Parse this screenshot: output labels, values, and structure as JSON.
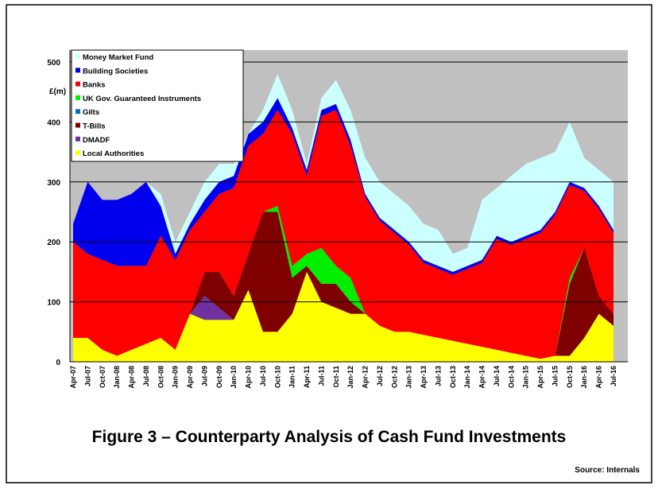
{
  "chart_data": {
    "type": "stacked-area",
    "title": "Figure 3 – Counterparty Analysis of Cash Fund Investments",
    "source": "Source: Internals",
    "y_label": "£(m)",
    "categories": [
      "Apr-07",
      "Jul-07",
      "Oct-07",
      "Jan-08",
      "Apr-08",
      "Jul-08",
      "Oct-08",
      "Jan-09",
      "Apr-09",
      "Jul-09",
      "Oct-09",
      "Jan-10",
      "Apr-10",
      "Jul-10",
      "Oct-10",
      "Jan-11",
      "Apr-11",
      "Jul-11",
      "Oct-11",
      "Jan-12",
      "Apr-12",
      "Jul-12",
      "Oct-12",
      "Jan-13",
      "Apr-13",
      "Jul-13",
      "Oct-13",
      "Jan-14",
      "Apr-14",
      "Jul-14",
      "Oct-14",
      "Jan-15",
      "Apr-15",
      "Jul-15",
      "Oct-15",
      "Jan-16",
      "Apr-16",
      "Jul-16"
    ],
    "series": [
      {
        "name": "Local Authorities",
        "color": "#ffff00",
        "values": [
          40,
          40,
          20,
          10,
          20,
          30,
          40,
          20,
          80,
          70,
          70,
          70,
          120,
          50,
          50,
          80,
          150,
          100,
          90,
          80,
          80,
          60,
          50,
          50,
          45,
          40,
          35,
          30,
          25,
          20,
          15,
          10,
          5,
          10,
          10,
          40,
          80,
          60
        ]
      },
      {
        "name": "DMADF",
        "color": "#7030a0",
        "values": [
          0,
          0,
          0,
          0,
          0,
          0,
          0,
          0,
          0,
          40,
          20,
          0,
          0,
          0,
          0,
          0,
          0,
          0,
          0,
          0,
          0,
          0,
          0,
          0,
          0,
          0,
          0,
          0,
          0,
          0,
          0,
          0,
          0,
          0,
          0,
          0,
          0,
          0
        ]
      },
      {
        "name": "T-Bills",
        "color": "#800000",
        "values": [
          0,
          0,
          0,
          0,
          0,
          0,
          0,
          0,
          0,
          40,
          60,
          40,
          60,
          200,
          200,
          60,
          10,
          30,
          40,
          20,
          0,
          0,
          0,
          0,
          0,
          0,
          0,
          0,
          0,
          0,
          0,
          0,
          0,
          0,
          120,
          150,
          30,
          20
        ]
      },
      {
        "name": "Gilts",
        "color": "#0070c0",
        "values": [
          0,
          0,
          0,
          0,
          0,
          0,
          0,
          0,
          0,
          0,
          0,
          0,
          0,
          0,
          0,
          0,
          0,
          0,
          0,
          0,
          0,
          0,
          0,
          0,
          0,
          0,
          0,
          0,
          0,
          0,
          0,
          0,
          0,
          0,
          0,
          0,
          0,
          0
        ]
      },
      {
        "name": "UK Gov. Guaranteed Instruments",
        "color": "#00ee00",
        "values": [
          0,
          0,
          0,
          0,
          0,
          0,
          0,
          0,
          0,
          0,
          0,
          0,
          0,
          0,
          10,
          20,
          20,
          60,
          30,
          40,
          0,
          0,
          0,
          0,
          0,
          0,
          0,
          0,
          0,
          0,
          0,
          0,
          0,
          0,
          10,
          0,
          0,
          0
        ]
      },
      {
        "name": "Banks",
        "color": "#ff0000",
        "values": [
          160,
          140,
          150,
          150,
          140,
          130,
          170,
          150,
          140,
          100,
          130,
          180,
          180,
          130,
          160,
          220,
          130,
          220,
          260,
          220,
          195,
          175,
          165,
          145,
          120,
          115,
          110,
          125,
          140,
          185,
          180,
          195,
          210,
          235,
          155,
          95,
          145,
          135
        ]
      },
      {
        "name": "Building Societies",
        "color": "#0000ee",
        "values": [
          30,
          120,
          100,
          110,
          120,
          140,
          50,
          10,
          10,
          20,
          20,
          20,
          20,
          20,
          20,
          10,
          10,
          10,
          10,
          10,
          5,
          5,
          5,
          5,
          5,
          5,
          5,
          5,
          5,
          5,
          5,
          5,
          5,
          5,
          5,
          5,
          5,
          5
        ]
      },
      {
        "name": "Money Market Fund",
        "color": "#ccffff",
        "values": [
          0,
          0,
          0,
          0,
          0,
          0,
          20,
          20,
          20,
          30,
          30,
          20,
          0,
          20,
          40,
          30,
          10,
          20,
          40,
          50,
          60,
          60,
          60,
          60,
          60,
          60,
          30,
          30,
          100,
          80,
          110,
          120,
          120,
          100,
          100,
          50,
          60,
          80
        ]
      }
    ],
    "ylim": [
      0,
      520
    ],
    "yticks": [
      0,
      100,
      200,
      300,
      400,
      500
    ],
    "grid": true,
    "legend": "top-left"
  }
}
